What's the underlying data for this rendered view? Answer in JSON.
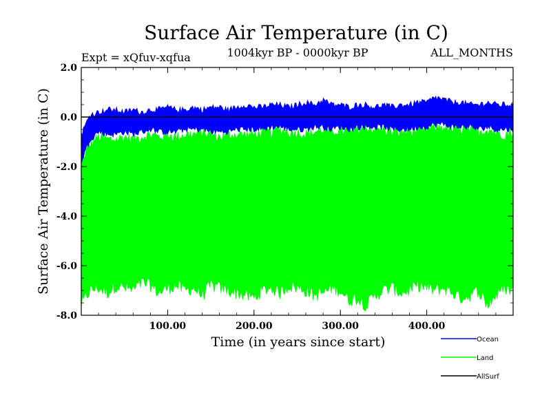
{
  "chart_data": {
    "type": "line",
    "title": "Surface Air Temperature (in C)",
    "subtitle_left": "Expt = xQfuv-xqfua",
    "subtitle_center": "1004kyr BP - 0000kyr BP",
    "subtitle_right": "ALL_MONTHS",
    "xlabel": "Time (in years since start)",
    "ylabel": "Surface Air Temperature (in C)",
    "xlim": [
      0,
      500
    ],
    "ylim": [
      -8.0,
      2.0
    ],
    "x_ticks": [
      100,
      200,
      300,
      400
    ],
    "x_tick_labels": [
      "100.00",
      "200.00",
      "300.00",
      "400.00"
    ],
    "y_ticks": [
      2.0,
      0.0,
      -2.0,
      -4.0,
      -6.0,
      -8.0
    ],
    "y_tick_labels": [
      "2.0",
      "0.0",
      "-2.0",
      "-4.0",
      "-6.0",
      "-8.0"
    ],
    "grid": false,
    "legend_position": "bottom-right",
    "series": [
      {
        "name": "Land",
        "color": "#00ff00",
        "band_upper": [
          -1.8,
          -1.1,
          -0.8,
          -0.9,
          -0.9,
          -0.8,
          -0.9,
          -0.8,
          -0.7,
          -0.8,
          -0.7,
          -0.8,
          -0.7,
          -0.7,
          -0.6,
          -0.7,
          -0.8,
          -0.7,
          -0.7,
          -0.7,
          -0.7,
          -0.6,
          -0.6,
          -0.5,
          -0.6,
          -0.6,
          -0.7,
          -0.6,
          -0.5,
          -0.6,
          -0.5,
          -0.6,
          -0.5,
          -0.4,
          -0.5,
          -0.5,
          -0.6,
          -0.6,
          -0.6,
          -0.5,
          -0.5,
          -0.4,
          -0.4,
          -0.5,
          -0.5,
          -0.5,
          -0.6,
          -0.5,
          -0.6,
          -0.7,
          -0.6
        ],
        "band_lower": [
          -7.6,
          -7.0,
          -6.9,
          -7.1,
          -6.8,
          -6.9,
          -7.0,
          -6.7,
          -6.8,
          -7.1,
          -6.9,
          -6.8,
          -7.0,
          -6.9,
          -7.2,
          -6.8,
          -6.9,
          -7.0,
          -7.1,
          -7.2,
          -7.3,
          -7.0,
          -6.9,
          -7.1,
          -6.8,
          -6.9,
          -7.0,
          -7.2,
          -7.1,
          -6.9,
          -7.0,
          -7.4,
          -7.3,
          -7.6,
          -7.2,
          -7.0,
          -6.9,
          -7.1,
          -7.0,
          -6.8,
          -6.9,
          -7.0,
          -6.9,
          -7.1,
          -7.3,
          -7.2,
          -7.0,
          -7.6,
          -7.2,
          -6.9,
          -7.0
        ]
      },
      {
        "name": "Ocean",
        "color": "#0000ff",
        "band_upper": [
          -0.7,
          0.1,
          0.2,
          0.3,
          0.3,
          0.2,
          0.3,
          0.2,
          0.3,
          0.3,
          0.4,
          0.3,
          0.3,
          0.4,
          0.3,
          0.4,
          0.4,
          0.3,
          0.4,
          0.5,
          0.4,
          0.4,
          0.5,
          0.5,
          0.4,
          0.5,
          0.6,
          0.5,
          0.7,
          0.5,
          0.5,
          0.4,
          0.5,
          0.5,
          0.4,
          0.5,
          0.4,
          0.5,
          0.5,
          0.6,
          0.6,
          0.8,
          0.7,
          0.6,
          0.6,
          0.5,
          0.5,
          0.6,
          0.5,
          0.5,
          0.5
        ],
        "band_lower": [
          -1.8,
          -0.9,
          -0.6,
          -0.7,
          -0.7,
          -0.6,
          -0.7,
          -0.6,
          -0.5,
          -0.6,
          -0.6,
          -0.6,
          -0.5,
          -0.5,
          -0.5,
          -0.6,
          -0.6,
          -0.6,
          -0.5,
          -0.5,
          -0.5,
          -0.5,
          -0.4,
          -0.4,
          -0.5,
          -0.5,
          -0.5,
          -0.4,
          -0.4,
          -0.5,
          -0.4,
          -0.5,
          -0.4,
          -0.4,
          -0.4,
          -0.4,
          -0.5,
          -0.5,
          -0.5,
          -0.4,
          -0.4,
          -0.3,
          -0.3,
          -0.4,
          -0.4,
          -0.4,
          -0.5,
          -0.4,
          -0.5,
          -0.5,
          -0.5
        ]
      },
      {
        "name": "AllSurf",
        "color": "#000000",
        "values": [
          0.0,
          0.0
        ]
      }
    ]
  }
}
